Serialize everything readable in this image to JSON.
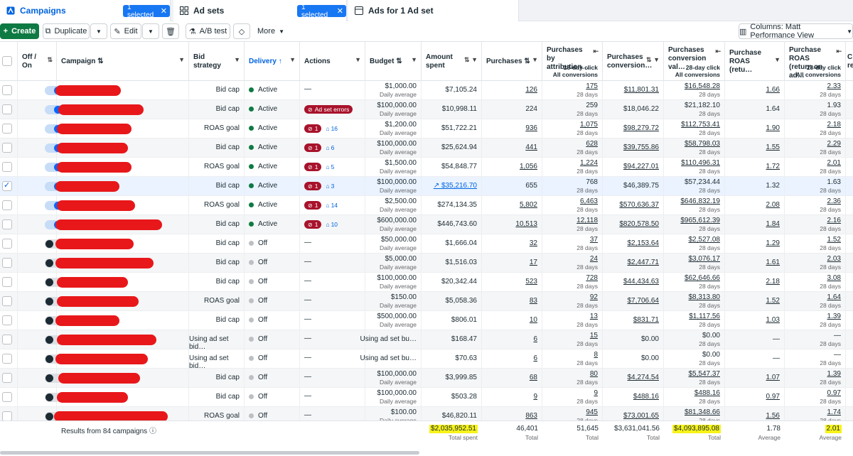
{
  "tabs": [
    {
      "label": "Campaigns",
      "badge": "1 selected"
    },
    {
      "label": "Ad sets",
      "badge": "1 selected"
    },
    {
      "label": "Ads for 1 Ad set"
    }
  ],
  "toolbar": {
    "create": "Create",
    "duplicate": "Duplicate",
    "edit": "Edit",
    "ab_test": "A/B test",
    "more": "More",
    "columns": "Columns: Matt Performance View"
  },
  "columns": {
    "off_on": "Off / On",
    "campaign": "Campaign",
    "bid_strategy": "Bid strategy",
    "delivery": "Delivery",
    "actions": "Actions",
    "budget": "Budget",
    "amount_spent": "Amount spent",
    "purchases": "Purchases",
    "purchases_by_attribution": "Purchases by attribution…",
    "purchases_by_attribution_sub1": "28-day click",
    "purchases_by_attribution_sub2": "All conversions",
    "purchases_conversion": "Purchases conversion…",
    "purchases_conversion_value": "Purchases conversion val…",
    "purchases_conversion_value_sub1": "28-day click",
    "purchases_conversion_value_sub2": "All conversions",
    "purchase_roas": "Purchase ROAS (retu…",
    "purchase_roas_attr": "Purchase ROAS (return on ad…",
    "purchase_roas_attr_sub1": "28-day click",
    "purchase_roas_attr_sub2": "All conversions",
    "next_col": "C re"
  },
  "rows": [
    {
      "toggle": "on",
      "checked": false,
      "bid": "Bid cap",
      "delivery": "Active",
      "action": "—",
      "budget": "$1,000.00",
      "budget_sub": "Daily average",
      "spent": "$7,105.24",
      "purchases": "126",
      "pa": "175",
      "pcv": "$11,801.31",
      "pcva": "$16,548.28",
      "roas": "1.66",
      "roasa": "2.33"
    },
    {
      "toggle": "on",
      "checked": false,
      "bid": "Bid cap",
      "delivery": "Active",
      "action_err": "Ad set errors",
      "budget": "$100,000.00",
      "budget_sub": "Daily average",
      "spent": "$10,998.11",
      "purchases": "224",
      "pa": "259",
      "pcv": "$18,046.22",
      "pcva": "$21,182.10",
      "roas": "1.64",
      "roasa": "1.93"
    },
    {
      "toggle": "on",
      "checked": false,
      "bid": "ROAS goal",
      "delivery": "Active",
      "err": "1",
      "info": "16",
      "budget": "$1,200.00",
      "budget_sub": "Daily average",
      "spent": "$51,722.21",
      "purchases": "936",
      "pa": "1,075",
      "pcv": "$98,279.72",
      "pcva": "$112,753.41",
      "roas": "1.90",
      "roasa": "2.18"
    },
    {
      "toggle": "on",
      "checked": false,
      "bid": "Bid cap",
      "delivery": "Active",
      "err": "1",
      "info": "6",
      "budget": "$100,000.00",
      "budget_sub": "Daily average",
      "spent": "$25,624.94",
      "purchases": "441",
      "pa": "628",
      "pcv": "$39,755.86",
      "pcva": "$58,798.03",
      "roas": "1.55",
      "roasa": "2.29"
    },
    {
      "toggle": "on",
      "checked": false,
      "bid": "ROAS goal",
      "delivery": "Active",
      "err": "1",
      "info": "5",
      "budget": "$1,500.00",
      "budget_sub": "Daily average",
      "spent": "$54,848.77",
      "purchases": "1,056",
      "pa": "1,224",
      "pcv": "$94,227.01",
      "pcva": "$110,496.31",
      "roas": "1.72",
      "roasa": "2.01"
    },
    {
      "toggle": "on",
      "checked": true,
      "bid": "Bid cap",
      "delivery": "Active",
      "err": "1",
      "info": "3",
      "budget": "$100,000.00",
      "budget_sub": "Daily average",
      "spent": "$35,216.70",
      "spent_link": true,
      "purchases": "655",
      "pa": "768",
      "pcv": "$46,389.75",
      "pcva": "$57,234.44",
      "roas": "1.32",
      "roasa": "1.63"
    },
    {
      "toggle": "on",
      "checked": false,
      "bid": "ROAS goal",
      "delivery": "Active",
      "err": "1",
      "info": "14",
      "budget": "$2,500.00",
      "budget_sub": "Daily average",
      "spent": "$274,134.35",
      "purchases": "5,802",
      "pa": "6,463",
      "pcv": "$570,636.37",
      "pcva": "$646,832.19",
      "roas": "2.08",
      "roasa": "2.36"
    },
    {
      "toggle": "on",
      "checked": false,
      "bid": "Bid cap",
      "delivery": "Active",
      "err": "1",
      "info": "10",
      "budget": "$600,000.00",
      "budget_sub": "Daily average",
      "spent": "$446,743.60",
      "purchases": "10,513",
      "pa": "12,118",
      "pcv": "$820,578.50",
      "pcva": "$965,612.39",
      "roas": "1.84",
      "roasa": "2.16"
    },
    {
      "toggle": "off",
      "checked": false,
      "bid": "Bid cap",
      "delivery": "Off",
      "action": "—",
      "budget": "$50,000.00",
      "budget_sub": "Daily average",
      "spent": "$1,666.04",
      "purchases": "32",
      "pa": "37",
      "pcv": "$2,153.64",
      "pcva": "$2,527.08",
      "roas": "1.29",
      "roasa": "1.52"
    },
    {
      "toggle": "off",
      "checked": false,
      "bid": "Bid cap",
      "delivery": "Off",
      "action": "—",
      "budget": "$5,000.00",
      "budget_sub": "Daily average",
      "spent": "$1,516.03",
      "purchases": "17",
      "pa": "24",
      "pcv": "$2,447.71",
      "pcva": "$3,076.17",
      "roas": "1.61",
      "roasa": "2.03"
    },
    {
      "toggle": "off",
      "checked": false,
      "bid": "Bid cap",
      "delivery": "Off",
      "action": "—",
      "budget": "$100,000.00",
      "budget_sub": "Daily average",
      "spent": "$20,342.44",
      "purchases": "523",
      "pa": "728",
      "pcv": "$44,434.63",
      "pcva": "$62,646.66",
      "roas": "2.18",
      "roasa": "3.08"
    },
    {
      "toggle": "off",
      "checked": false,
      "bid": "ROAS goal",
      "delivery": "Off",
      "action": "—",
      "budget": "$150.00",
      "budget_sub": "Daily average",
      "spent": "$5,058.36",
      "purchases": "83",
      "pa": "92",
      "pcv": "$7,706.64",
      "pcva": "$8,313.80",
      "roas": "1.52",
      "roasa": "1.64"
    },
    {
      "toggle": "off",
      "checked": false,
      "bid": "Bid cap",
      "delivery": "Off",
      "action": "—",
      "budget": "$500,000.00",
      "budget_sub": "Daily average",
      "spent": "$806.01",
      "purchases": "10",
      "pa": "13",
      "pcv": "$831.71",
      "pcva": "$1,117.56",
      "roas": "1.03",
      "roasa": "1.39"
    },
    {
      "toggle": "off",
      "checked": false,
      "bid": "Using ad set bid…",
      "delivery": "Off",
      "action": "—",
      "budget": "Using ad set bu…",
      "budget_sub": "",
      "spent": "$168.47",
      "purchases": "6",
      "pa": "15",
      "pcv": "$0.00",
      "pcva": "$0.00",
      "pcv_plain": true,
      "roas": "—",
      "roasa": "—",
      "roas_plain": true
    },
    {
      "toggle": "off",
      "checked": false,
      "bid": "Using ad set bid…",
      "delivery": "Off",
      "action": "—",
      "budget": "Using ad set bu…",
      "budget_sub": "",
      "spent": "$70.63",
      "purchases": "6",
      "pa": "8",
      "pcv": "$0.00",
      "pcva": "$0.00",
      "pcv_plain": true,
      "roas": "—",
      "roasa": "—",
      "roas_plain": true
    },
    {
      "toggle": "off",
      "checked": false,
      "bid": "Bid cap",
      "delivery": "Off",
      "action": "—",
      "budget": "$100,000.00",
      "budget_sub": "Daily average",
      "spent": "$3,999.85",
      "purchases": "68",
      "pa": "80",
      "pcv": "$4,274.54",
      "pcva": "$5,547.37",
      "roas": "1.07",
      "roasa": "1.39"
    },
    {
      "toggle": "off",
      "checked": false,
      "bid": "Bid cap",
      "delivery": "Off",
      "action": "—",
      "budget": "$100,000.00",
      "budget_sub": "Daily average",
      "spent": "$503.28",
      "purchases": "9",
      "pa": "9",
      "pcv": "$488.16",
      "pcva": "$488.16",
      "roas": "0.97",
      "roasa": "0.97"
    },
    {
      "toggle": "off",
      "checked": false,
      "bid": "ROAS goal",
      "delivery": "Off",
      "action": "—",
      "budget": "$100.00",
      "budget_sub": "Daily average",
      "spent": "$46,820.11",
      "purchases": "863",
      "pa": "945",
      "pcv": "$73,001.65",
      "pcva": "$81,348.66",
      "roas": "1.56",
      "roasa": "1.74"
    }
  ],
  "sub_28day": "28 days",
  "footer": {
    "results": "Results from 84 campaigns",
    "spent": "$2,035,952.51",
    "spent_sub": "Total spent",
    "purchases": "46,401",
    "purchases_sub": "Total",
    "pa": "51,645",
    "pa_sub": "Total",
    "pcv": "$3,631,041.56",
    "pcv_sub": "Total",
    "pcva": "$4,093,895.08",
    "pcva_sub": "Total",
    "roas": "1.78",
    "roas_sub": "Average",
    "roasa": "2.01",
    "roasa_sub": "Average"
  },
  "colors": {
    "accent": "#0064e0",
    "create": "#0e7a43",
    "error": "#a8122b",
    "highlight": "#f7f31a",
    "redact": "#e8171a"
  }
}
